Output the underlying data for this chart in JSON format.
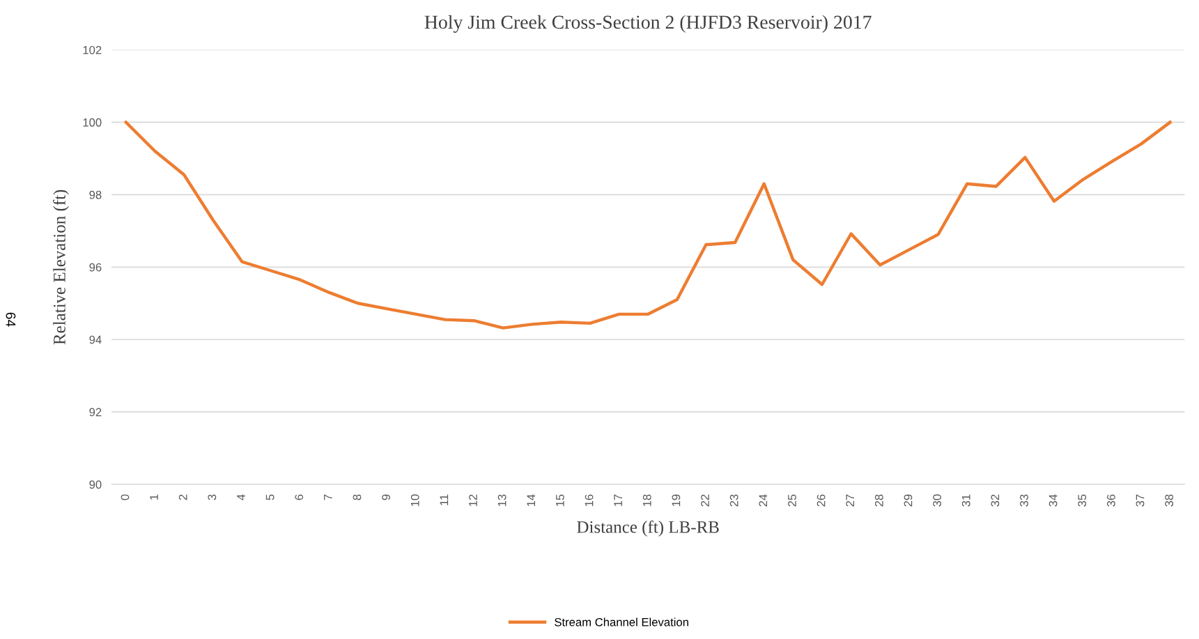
{
  "chart_data": {
    "type": "line",
    "title": "Holy Jim Creek Cross-Section 2 (HJFD3 Reservoir) 2017",
    "xlabel": "Distance (ft) LB-RB",
    "ylabel": "Relative Elevation (ft)",
    "categories": [
      "0",
      "1",
      "2",
      "3",
      "4",
      "5",
      "6",
      "7",
      "8",
      "9",
      "10",
      "11",
      "12",
      "13",
      "14",
      "15",
      "16",
      "17",
      "18",
      "19",
      "22",
      "23",
      "24",
      "25",
      "26",
      "27",
      "28",
      "29",
      "30",
      "31",
      "32",
      "33",
      "34",
      "35",
      "36",
      "37",
      "38"
    ],
    "series": [
      {
        "name": "Stream Channel Elevation",
        "color": "#ed7d31",
        "values": [
          100,
          99.2,
          98.55,
          97.3,
          96.15,
          95.9,
          95.65,
          95.3,
          95.0,
          94.85,
          94.7,
          94.55,
          94.52,
          94.32,
          94.42,
          94.48,
          94.45,
          94.7,
          94.7,
          95.1,
          96.62,
          96.68,
          98.3,
          96.2,
          95.52,
          96.92,
          96.06,
          96.48,
          96.9,
          98.3,
          98.23,
          99.03,
          97.82,
          98.42,
          98.92,
          99.4,
          100
        ]
      }
    ],
    "ylim": [
      90,
      102
    ],
    "yticks": [
      90,
      92,
      94,
      96,
      98,
      100,
      102
    ],
    "grid": "y",
    "legend": "bottom",
    "marker": "none",
    "line_style": "solid",
    "annotations": [
      "64"
    ]
  }
}
